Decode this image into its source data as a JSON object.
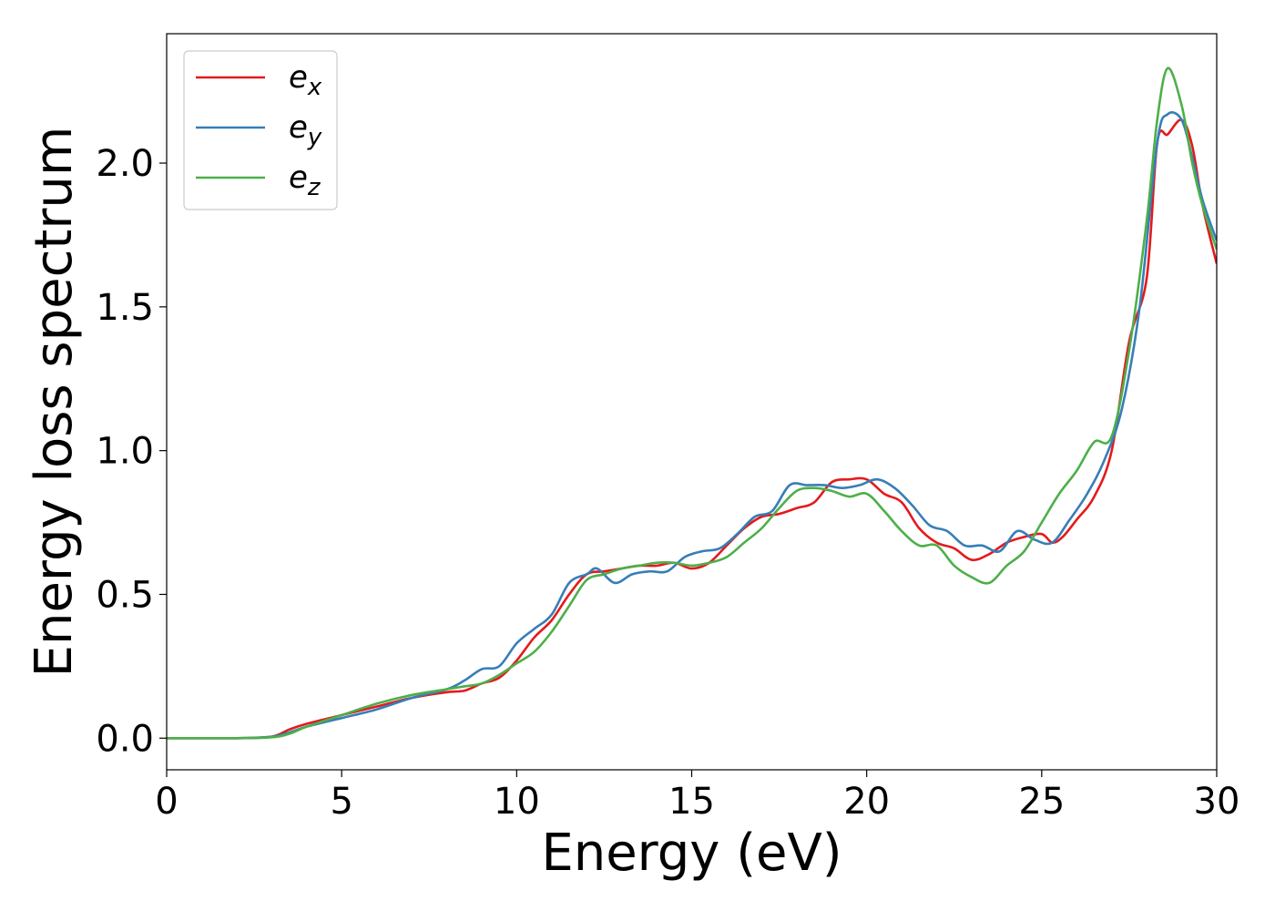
{
  "chart_data": {
    "type": "line",
    "title": "",
    "xlabel": "Energy (eV)",
    "ylabel": "Energy loss spectrum",
    "xlim": [
      0,
      30
    ],
    "ylim": [
      -0.11,
      2.45
    ],
    "xticks": [
      0,
      5,
      10,
      15,
      20,
      25,
      30
    ],
    "yticks": [
      0.0,
      0.5,
      1.0,
      1.5,
      2.0
    ],
    "xtick_labels": [
      "0",
      "5",
      "10",
      "15",
      "20",
      "25",
      "30"
    ],
    "ytick_labels": [
      "0.0",
      "0.5",
      "1.0",
      "1.5",
      "2.0"
    ],
    "grid": false,
    "legend_position": "top-left",
    "series": [
      {
        "name": "e",
        "subscript": "x",
        "color": "#e41a1c",
        "x": [
          0,
          2,
          3,
          3.5,
          4,
          5,
          6,
          7,
          8,
          8.5,
          9,
          9.5,
          10,
          10.5,
          11,
          11.5,
          12,
          12.5,
          13,
          13.5,
          14,
          14.5,
          15,
          15.5,
          16,
          16.5,
          17,
          17.5,
          18,
          18.5,
          19,
          19.5,
          20,
          20.5,
          21,
          21.5,
          22,
          22.5,
          23,
          23.5,
          24,
          24.5,
          25,
          25.3,
          25.6,
          26,
          26.5,
          27,
          27.5,
          28,
          28.3,
          28.6,
          29,
          29.3,
          29.6,
          30
        ],
        "y": [
          0.0,
          0.0,
          0.005,
          0.03,
          0.05,
          0.08,
          0.11,
          0.14,
          0.16,
          0.165,
          0.19,
          0.21,
          0.27,
          0.35,
          0.41,
          0.5,
          0.57,
          0.58,
          0.59,
          0.6,
          0.6,
          0.61,
          0.59,
          0.61,
          0.67,
          0.73,
          0.77,
          0.78,
          0.8,
          0.82,
          0.89,
          0.9,
          0.9,
          0.85,
          0.82,
          0.73,
          0.68,
          0.66,
          0.62,
          0.64,
          0.68,
          0.7,
          0.71,
          0.68,
          0.7,
          0.76,
          0.84,
          1.0,
          1.38,
          1.6,
          2.07,
          2.1,
          2.15,
          2.06,
          1.85,
          1.65
        ]
      },
      {
        "name": "e",
        "subscript": "y",
        "color": "#377eb8",
        "x": [
          0,
          2,
          3,
          3.5,
          4,
          5,
          6,
          7,
          8,
          8.5,
          9,
          9.5,
          10,
          10.5,
          11,
          11.5,
          12,
          12.3,
          12.8,
          13.3,
          13.8,
          14.3,
          14.8,
          15.3,
          15.8,
          16.3,
          16.8,
          17.3,
          17.8,
          18.3,
          18.8,
          19.3,
          19.8,
          20.3,
          20.8,
          21.3,
          21.8,
          22.3,
          22.8,
          23.3,
          23.8,
          24.3,
          24.8,
          25.3,
          25.8,
          26.3,
          26.8,
          27.3,
          27.8,
          28.3,
          28.6,
          29,
          29.3,
          29.6,
          30
        ],
        "y": [
          0.0,
          0.0,
          0.005,
          0.02,
          0.04,
          0.07,
          0.1,
          0.14,
          0.17,
          0.2,
          0.24,
          0.25,
          0.33,
          0.38,
          0.43,
          0.54,
          0.57,
          0.59,
          0.54,
          0.57,
          0.58,
          0.58,
          0.63,
          0.65,
          0.66,
          0.71,
          0.77,
          0.79,
          0.88,
          0.88,
          0.88,
          0.87,
          0.88,
          0.9,
          0.87,
          0.81,
          0.74,
          0.72,
          0.67,
          0.67,
          0.65,
          0.72,
          0.69,
          0.68,
          0.76,
          0.85,
          0.97,
          1.15,
          1.5,
          2.07,
          2.17,
          2.15,
          2.02,
          1.87,
          1.73
        ]
      },
      {
        "name": "e",
        "subscript": "z",
        "color": "#4daf4a",
        "x": [
          0,
          2,
          3,
          3.5,
          4,
          5,
          6,
          7,
          8,
          8.5,
          9,
          9.5,
          10,
          10.5,
          11,
          11.5,
          12,
          12.5,
          13,
          13.5,
          14,
          14.5,
          15,
          15.5,
          16,
          16.5,
          17,
          17.5,
          18,
          18.5,
          19,
          19.5,
          20,
          20.5,
          21,
          21.5,
          22,
          22.5,
          23,
          23.5,
          24,
          24.5,
          25,
          25.5,
          26,
          26.5,
          27,
          27.5,
          28,
          28.3,
          28.6,
          29,
          29.3,
          29.6,
          30
        ],
        "y": [
          0.0,
          0.0,
          0.003,
          0.015,
          0.04,
          0.08,
          0.12,
          0.15,
          0.17,
          0.18,
          0.19,
          0.22,
          0.26,
          0.3,
          0.37,
          0.46,
          0.55,
          0.57,
          0.59,
          0.6,
          0.61,
          0.61,
          0.6,
          0.61,
          0.63,
          0.68,
          0.73,
          0.8,
          0.86,
          0.87,
          0.86,
          0.84,
          0.85,
          0.79,
          0.72,
          0.67,
          0.67,
          0.6,
          0.56,
          0.54,
          0.6,
          0.65,
          0.75,
          0.85,
          0.93,
          1.03,
          1.05,
          1.35,
          1.8,
          2.15,
          2.33,
          2.2,
          2.0,
          1.85,
          1.7
        ]
      }
    ]
  }
}
